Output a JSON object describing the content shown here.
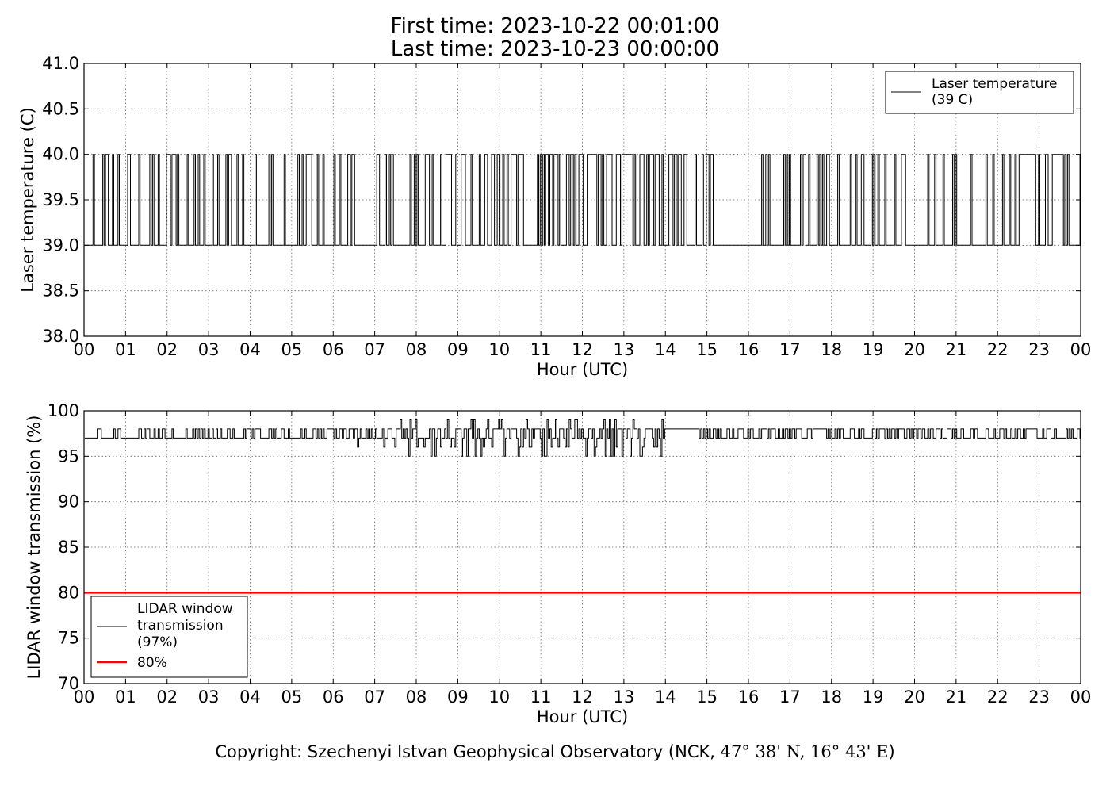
{
  "title": {
    "line1": "First time: 2023-10-22 00:01:00",
    "line2": "Last time: 2023-10-23 00:00:00"
  },
  "footer": {
    "prefix": "Copyright: Szechenyi Istvan Geophysical Observatory (NCK, ",
    "coords": "47° 38' N, 16° 43' E",
    "suffix": ")"
  },
  "chart_data": [
    {
      "type": "line",
      "xlabel": "Hour (UTC)",
      "ylabel": "Laser temperature (C)",
      "ylim": [
        38.0,
        41.0
      ],
      "yticks": [
        "38.0",
        "38.5",
        "39.0",
        "39.5",
        "40.0",
        "40.5",
        "41.0"
      ],
      "xlim": [
        0,
        24
      ],
      "xticks": [
        "00",
        "01",
        "02",
        "03",
        "04",
        "05",
        "06",
        "07",
        "08",
        "09",
        "10",
        "11",
        "12",
        "13",
        "14",
        "15",
        "16",
        "17",
        "18",
        "19",
        "20",
        "21",
        "22",
        "23",
        "00"
      ],
      "grid": true,
      "legend_position": "top-right",
      "series": [
        {
          "name": "Laser temperature\n(39 C)",
          "color": "#000000",
          "levels": [
            39.0,
            40.0
          ],
          "baseline": 39.0,
          "sampling_minutes": 1,
          "steady_baseline_windows_hours": [
            [
              15.2,
              16.25
            ]
          ],
          "steady_high_windows_hours": [
            [
              22.55,
              22.9
            ],
            [
              23.3,
              23.55
            ]
          ],
          "x_range_hours": [
            0.017,
            24.0
          ]
        }
      ]
    },
    {
      "type": "line",
      "xlabel": "Hour (UTC)",
      "ylabel": "LIDAR window transmission (%)",
      "ylim": [
        70,
        100
      ],
      "yticks": [
        "70",
        "75",
        "80",
        "85",
        "90",
        "95",
        "100"
      ],
      "xlim": [
        0,
        24
      ],
      "xticks": [
        "00",
        "01",
        "02",
        "03",
        "04",
        "05",
        "06",
        "07",
        "08",
        "09",
        "10",
        "11",
        "12",
        "13",
        "14",
        "15",
        "16",
        "17",
        "18",
        "19",
        "20",
        "21",
        "22",
        "23",
        "00"
      ],
      "grid": true,
      "legend_position": "bottom-left",
      "series": [
        {
          "name": "LIDAR window\ntransmission\n(97%)",
          "color": "#000000",
          "baseline": 97,
          "high": 98,
          "noisy_interval_hours": [
            7.4,
            14.0
          ],
          "noisy_range": [
            94,
            99
          ],
          "x_range_hours": [
            0.017,
            24.0
          ]
        },
        {
          "name": "80%",
          "color": "#ff0000",
          "constant": 80
        }
      ]
    }
  ]
}
